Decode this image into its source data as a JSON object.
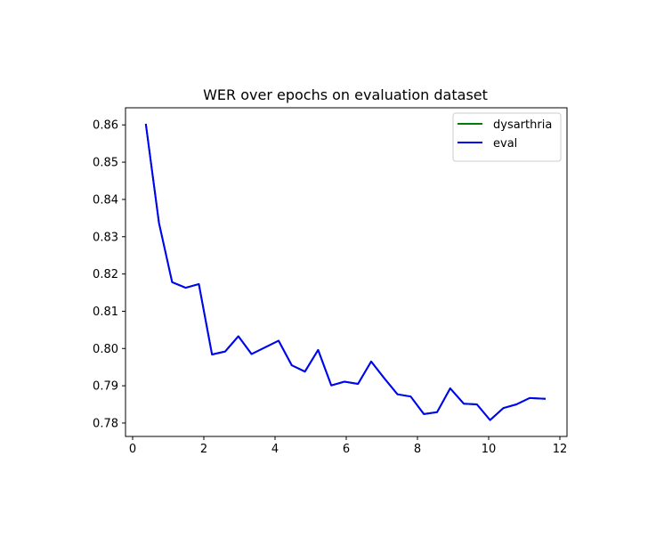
{
  "chart_data": {
    "type": "line",
    "title": "WER over epochs on evaluation dataset",
    "xlabel": "",
    "ylabel": "",
    "xlim": [
      -0.2,
      12.2
    ],
    "ylim": [
      0.7764,
      0.8646
    ],
    "x_ticks": [
      0,
      2,
      4,
      6,
      8,
      10,
      12
    ],
    "x_tick_labels": [
      "0",
      "2",
      "4",
      "6",
      "8",
      "10",
      "12"
    ],
    "y_ticks": [
      0.78,
      0.79,
      0.8,
      0.81,
      0.82,
      0.83,
      0.84,
      0.85,
      0.86
    ],
    "y_tick_labels": [
      "0.78",
      "0.79",
      "0.80",
      "0.81",
      "0.82",
      "0.83",
      "0.84",
      "0.85",
      "0.86"
    ],
    "grid": false,
    "legend_position": "top-right",
    "series": [
      {
        "name": "dysarthria",
        "color": "#008000",
        "x": [
          0.37,
          0.74,
          1.11,
          1.49,
          1.86,
          2.23,
          2.6,
          2.97,
          3.34,
          4.1,
          4.47,
          4.84,
          5.21,
          5.58,
          5.95,
          6.33,
          6.7,
          7.07,
          7.44,
          7.81,
          8.18,
          8.55,
          8.92,
          9.3,
          9.67,
          10.04,
          10.41,
          10.78,
          11.15,
          11.6
        ],
        "y": [
          0.8603,
          0.8337,
          0.8178,
          0.8163,
          0.8173,
          0.7984,
          0.7992,
          0.8033,
          0.7985,
          0.8021,
          0.7955,
          0.7938,
          0.7996,
          0.7901,
          0.7911,
          0.7905,
          0.7965,
          0.792,
          0.7877,
          0.7871,
          0.7824,
          0.7829,
          0.7893,
          0.7852,
          0.785,
          0.7808,
          0.784,
          0.785,
          0.7867,
          0.7865
        ]
      },
      {
        "name": "eval",
        "color": "#0000ff",
        "x": [
          0.37,
          0.74,
          1.11,
          1.49,
          1.86,
          2.23,
          2.6,
          2.97,
          3.34,
          4.1,
          4.47,
          4.84,
          5.21,
          5.58,
          5.95,
          6.33,
          6.7,
          7.07,
          7.44,
          7.81,
          8.18,
          8.55,
          8.92,
          9.3,
          9.67,
          10.04,
          10.41,
          10.78,
          11.15,
          11.6
        ],
        "y": [
          0.8603,
          0.8337,
          0.8178,
          0.8163,
          0.8173,
          0.7984,
          0.7992,
          0.8033,
          0.7985,
          0.8021,
          0.7955,
          0.7938,
          0.7996,
          0.7901,
          0.7911,
          0.7905,
          0.7965,
          0.792,
          0.7877,
          0.7871,
          0.7824,
          0.7829,
          0.7893,
          0.7852,
          0.785,
          0.7808,
          0.784,
          0.785,
          0.7867,
          0.7865
        ]
      }
    ]
  }
}
